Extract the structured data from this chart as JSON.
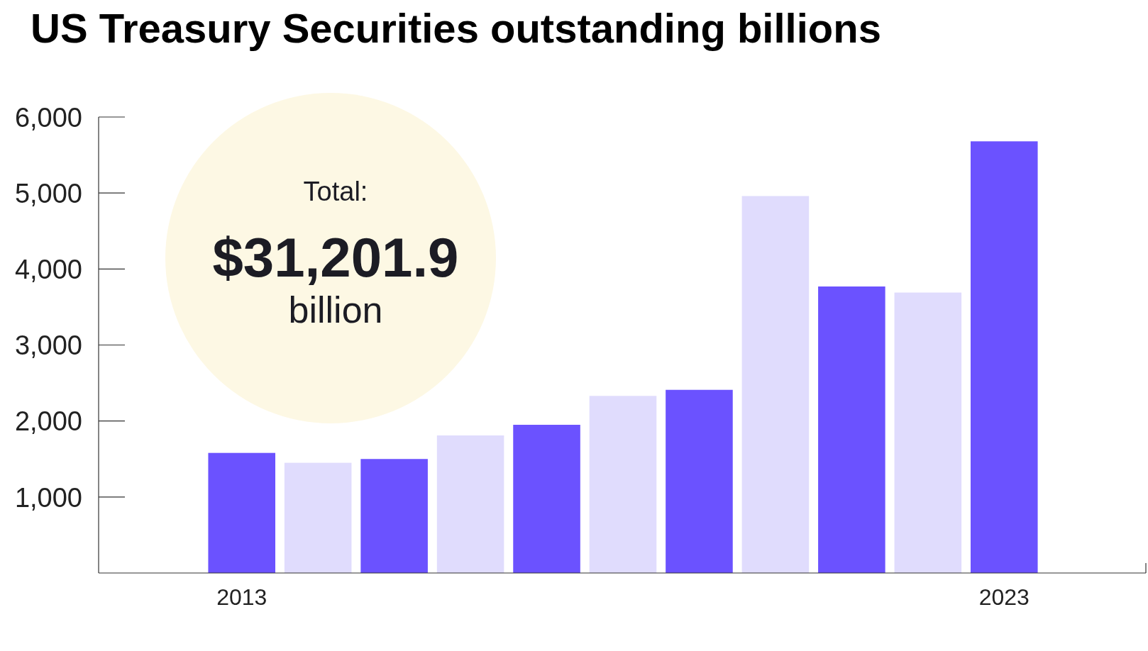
{
  "chart_data": {
    "type": "bar",
    "title": "US Treasury Securities outstanding billions",
    "categories": [
      "2013",
      null,
      null,
      null,
      null,
      null,
      null,
      null,
      null,
      null,
      "2023"
    ],
    "values": [
      1580,
      1450,
      1500,
      1810,
      1950,
      2330,
      2410,
      4960,
      3770,
      3690,
      5680
    ],
    "colors": [
      "#6b52ff",
      "#e0dcfd",
      "#6b52ff",
      "#e0dcfd",
      "#6b52ff",
      "#e0dcfd",
      "#6b52ff",
      "#e0dcfd",
      "#6b52ff",
      "#e0dcfd",
      "#6b52ff"
    ],
    "ylim": [
      0,
      6000
    ],
    "yticks": [
      {
        "value": 1000,
        "label": "1,000"
      },
      {
        "value": 2000,
        "label": "2,000"
      },
      {
        "value": 3000,
        "label": "3,000"
      },
      {
        "value": 4000,
        "label": "4,000"
      },
      {
        "value": 5000,
        "label": "5,000"
      },
      {
        "value": 6000,
        "label": "6,000"
      }
    ],
    "annotations": [
      "Total:",
      "$31,201.9",
      "billion"
    ],
    "grid": false
  }
}
